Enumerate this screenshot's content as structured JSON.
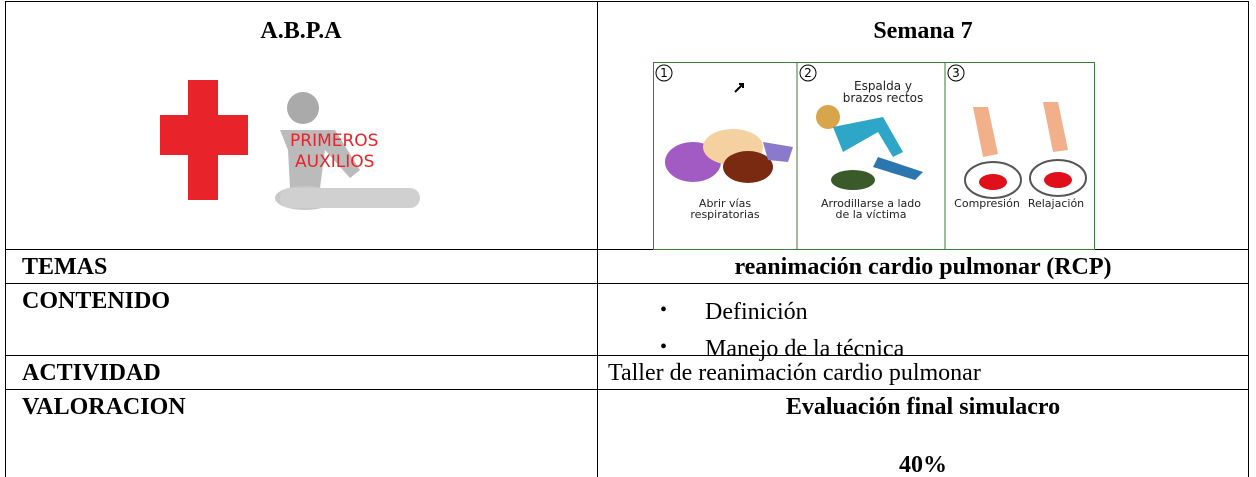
{
  "header": {
    "left_title": "A.B.P.A",
    "right_title": "Semana 7",
    "logo_text": [
      "PRIMEROS",
      "AUXILIOS"
    ],
    "steps": [
      {
        "number": "1",
        "caption": [
          "Abrir vías",
          "respiratorias"
        ]
      },
      {
        "number": "2",
        "note": [
          "Espalda y",
          "brazos rectos"
        ],
        "caption": [
          "Arrodillarse a lado",
          "de la víctima"
        ]
      },
      {
        "number": "3",
        "caption": [
          "Compresión",
          "Relajación"
        ]
      }
    ]
  },
  "table": {
    "rows": [
      {
        "label": "TEMAS",
        "content": [
          "reanimación cardio pulmonar (RCP)"
        ]
      },
      {
        "label": "CONTENIDO",
        "content": [
          "Definición",
          "Manejo de la técnica"
        ]
      },
      {
        "label": "ACTIVIDAD",
        "content": [
          "Taller de reanimación cardio pulmonar"
        ]
      },
      {
        "label": "VALORACION",
        "content": [
          "Evaluación final simulacro",
          "40%"
        ]
      }
    ]
  }
}
